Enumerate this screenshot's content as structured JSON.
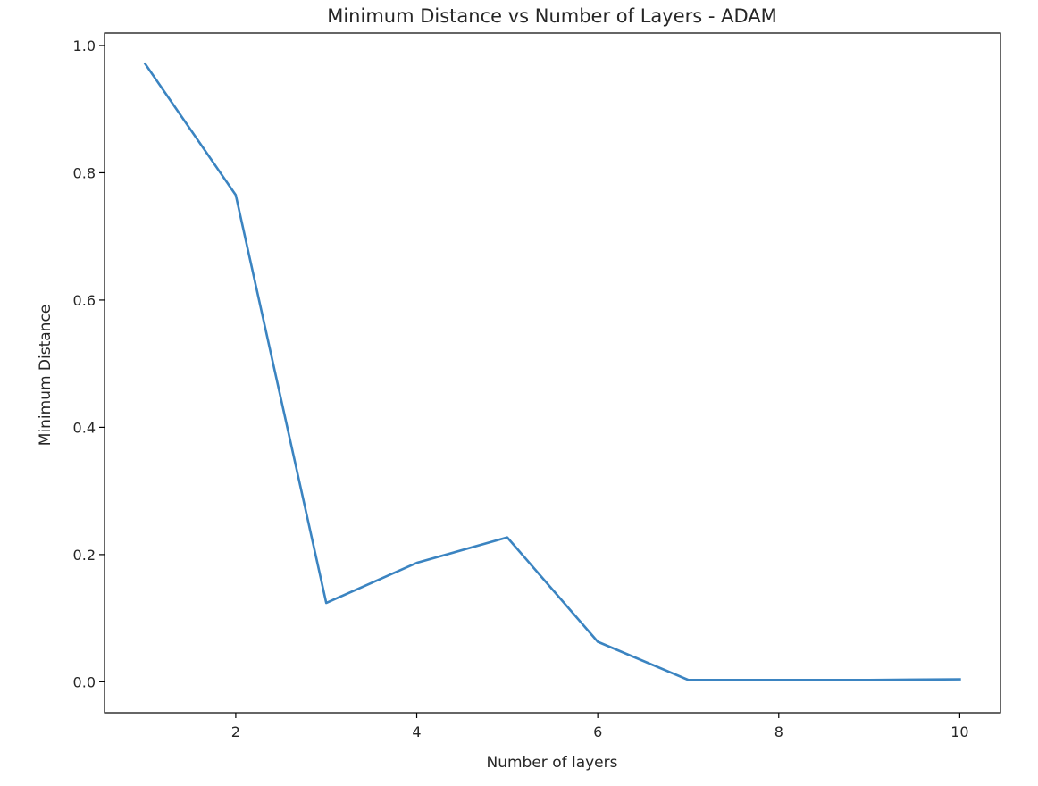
{
  "chart_data": {
    "type": "line",
    "title": "Minimum Distance vs Number of Layers - ADAM",
    "xlabel": "Number of layers",
    "ylabel": "Minimum Distance",
    "x": [
      1,
      2,
      3,
      4,
      5,
      6,
      7,
      8,
      9,
      10
    ],
    "series": [
      {
        "values": [
          0.971,
          0.765,
          0.124,
          0.187,
          0.227,
          0.063,
          0.003,
          0.003,
          0.003,
          0.004
        ],
        "color": "#3b84c1"
      }
    ],
    "xlim": [
      0.55,
      10.45
    ],
    "ylim": [
      -0.0486,
      1.0196
    ],
    "xticks": [
      2,
      4,
      6,
      8,
      10
    ],
    "xtick_labels": [
      "2",
      "4",
      "6",
      "8",
      "10"
    ],
    "yticks": [
      0.0,
      0.2,
      0.4,
      0.6,
      0.8,
      1.0
    ],
    "ytick_labels": [
      "0.0",
      "0.2",
      "0.4",
      "0.6",
      "0.8",
      "1.0"
    ],
    "grid": false,
    "legend": "none"
  }
}
